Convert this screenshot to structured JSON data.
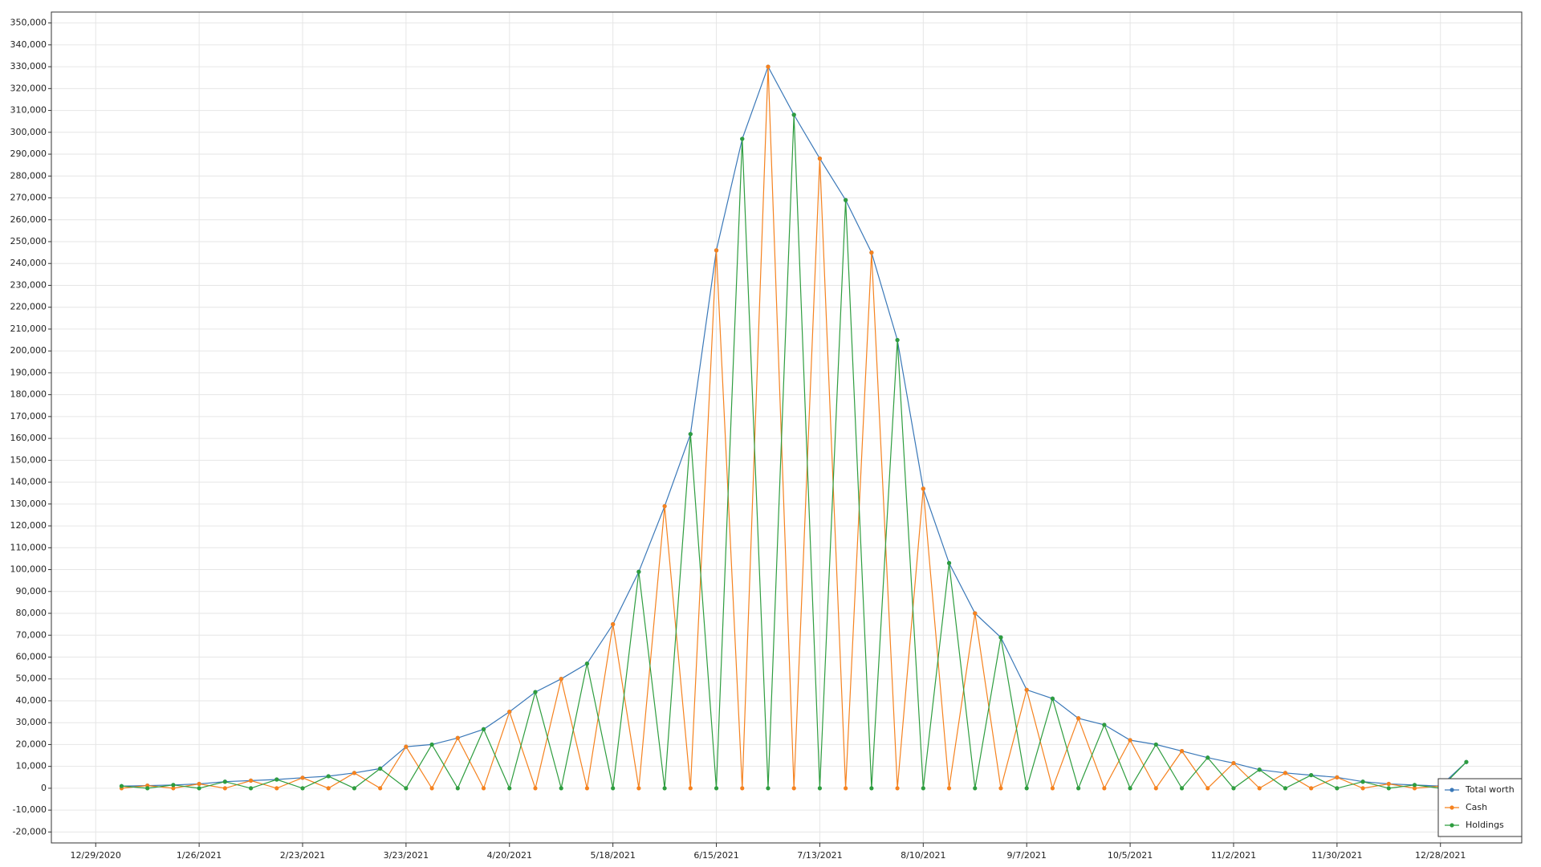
{
  "chart_data": {
    "type": "line",
    "x": [
      "1/5/2021",
      "1/12/2021",
      "1/19/2021",
      "1/26/2021",
      "2/2/2021",
      "2/9/2021",
      "2/16/2021",
      "2/23/2021",
      "3/2/2021",
      "3/9/2021",
      "3/16/2021",
      "3/23/2021",
      "3/30/2021",
      "4/6/2021",
      "4/13/2021",
      "4/20/2021",
      "4/27/2021",
      "5/4/2021",
      "5/11/2021",
      "5/18/2021",
      "5/25/2021",
      "6/1/2021",
      "6/8/2021",
      "6/15/2021",
      "6/22/2021",
      "6/29/2021",
      "7/6/2021",
      "7/13/2021",
      "7/20/2021",
      "7/27/2021",
      "8/3/2021",
      "8/10/2021",
      "8/17/2021",
      "8/24/2021",
      "8/31/2021",
      "9/7/2021",
      "9/14/2021",
      "9/21/2021",
      "9/28/2021",
      "10/5/2021",
      "10/12/2021",
      "10/19/2021",
      "10/26/2021",
      "11/2/2021",
      "11/9/2021",
      "11/16/2021",
      "11/23/2021",
      "11/30/2021",
      "12/7/2021",
      "12/14/2021",
      "12/21/2021",
      "12/28/2021",
      "1/4/2022"
    ],
    "series": [
      {
        "name": "Total worth",
        "color": "#3a78b8",
        "values": [
          1000,
          1200,
          1500,
          2000,
          3000,
          3500,
          4000,
          4800,
          5500,
          7000,
          9000,
          19000,
          20000,
          23000,
          27000,
          35000,
          44000,
          50000,
          57000,
          75000,
          99000,
          129000,
          162000,
          246000,
          297000,
          330000,
          308000,
          288000,
          269000,
          245000,
          205000,
          137000,
          103000,
          80000,
          69000,
          45000,
          41000,
          32000,
          29000,
          22000,
          20000,
          17000,
          14000,
          11500,
          8500,
          7000,
          6000,
          5000,
          3000,
          2000,
          1500,
          1000,
          12000
        ]
      },
      {
        "name": "Cash",
        "color": "#f5821f",
        "values": [
          0,
          1200,
          0,
          2000,
          0,
          3500,
          0,
          4800,
          0,
          7000,
          0,
          19000,
          0,
          23000,
          0,
          35000,
          0,
          50000,
          0,
          75000,
          0,
          129000,
          0,
          246000,
          0,
          330000,
          0,
          288000,
          0,
          245000,
          0,
          137000,
          0,
          80000,
          0,
          45000,
          0,
          32000,
          0,
          22000,
          0,
          17000,
          0,
          11500,
          0,
          7000,
          0,
          5000,
          0,
          2000,
          0,
          1000,
          0
        ]
      },
      {
        "name": "Holdings",
        "color": "#2e9d3f",
        "values": [
          1000,
          0,
          1500,
          0,
          3000,
          0,
          4000,
          0,
          5500,
          0,
          9000,
          0,
          20000,
          0,
          27000,
          0,
          44000,
          0,
          57000,
          0,
          99000,
          0,
          162000,
          0,
          297000,
          0,
          308000,
          0,
          269000,
          0,
          205000,
          0,
          103000,
          0,
          69000,
          0,
          41000,
          0,
          29000,
          0,
          20000,
          0,
          14000,
          0,
          8500,
          0,
          6000,
          0,
          3000,
          0,
          1500,
          0,
          12000
        ]
      }
    ],
    "xlim": [
      "12/17/2020",
      "1/19/2022"
    ],
    "xticks": [
      "12/29/2020",
      "1/26/2021",
      "2/23/2021",
      "3/23/2021",
      "4/20/2021",
      "5/18/2021",
      "6/15/2021",
      "7/13/2021",
      "8/10/2021",
      "9/7/2021",
      "10/5/2021",
      "11/2/2021",
      "11/30/2021",
      "12/28/2021"
    ],
    "ylim": [
      -25000,
      355000
    ],
    "yticks": [
      {
        "value": -20000,
        "label": "-20,000"
      },
      {
        "value": -10000,
        "label": "-10,000"
      },
      0,
      {
        "value": 10000,
        "label": "10,000"
      },
      {
        "value": 20000,
        "label": "20,000"
      },
      {
        "value": 30000,
        "label": "30,000"
      },
      {
        "value": 40000,
        "label": "40,000"
      },
      {
        "value": 50000,
        "label": "50,000"
      },
      {
        "value": 60000,
        "label": "60,000"
      },
      {
        "value": 70000,
        "label": "70,000"
      },
      {
        "value": 80000,
        "label": "80,000"
      },
      {
        "value": 90000,
        "label": "90,000"
      },
      {
        "value": 100000,
        "label": "100,000"
      },
      {
        "value": 110000,
        "label": "110,000"
      },
      {
        "value": 120000,
        "label": "120,000"
      },
      {
        "value": 130000,
        "label": "130,000"
      },
      {
        "value": 140000,
        "label": "140,000"
      },
      {
        "value": 150000,
        "label": "150,000"
      },
      {
        "value": 160000,
        "label": "160,000"
      },
      {
        "value": 170000,
        "label": "170,000"
      },
      {
        "value": 180000,
        "label": "180,000"
      },
      {
        "value": 190000,
        "label": "190,000"
      },
      {
        "value": 200000,
        "label": "200,000"
      },
      {
        "value": 210000,
        "label": "210,000"
      },
      {
        "value": 220000,
        "label": "220,000"
      },
      {
        "value": 230000,
        "label": "230,000"
      },
      {
        "value": 240000,
        "label": "240,000"
      },
      {
        "value": 250000,
        "label": "250,000"
      },
      {
        "value": 260000,
        "label": "260,000"
      },
      {
        "value": 270000,
        "label": "270,000"
      },
      {
        "value": 280000,
        "label": "280,000"
      },
      {
        "value": 290000,
        "label": "290,000"
      },
      {
        "value": 300000,
        "label": "300,000"
      },
      {
        "value": 310000,
        "label": "310,000"
      },
      {
        "value": 320000,
        "label": "320,000"
      },
      {
        "value": 330000,
        "label": "330,000"
      },
      {
        "value": 340000,
        "label": "340,000"
      },
      {
        "value": 350000,
        "label": "350,000"
      }
    ],
    "grid": true,
    "legend": "bottom-right"
  }
}
